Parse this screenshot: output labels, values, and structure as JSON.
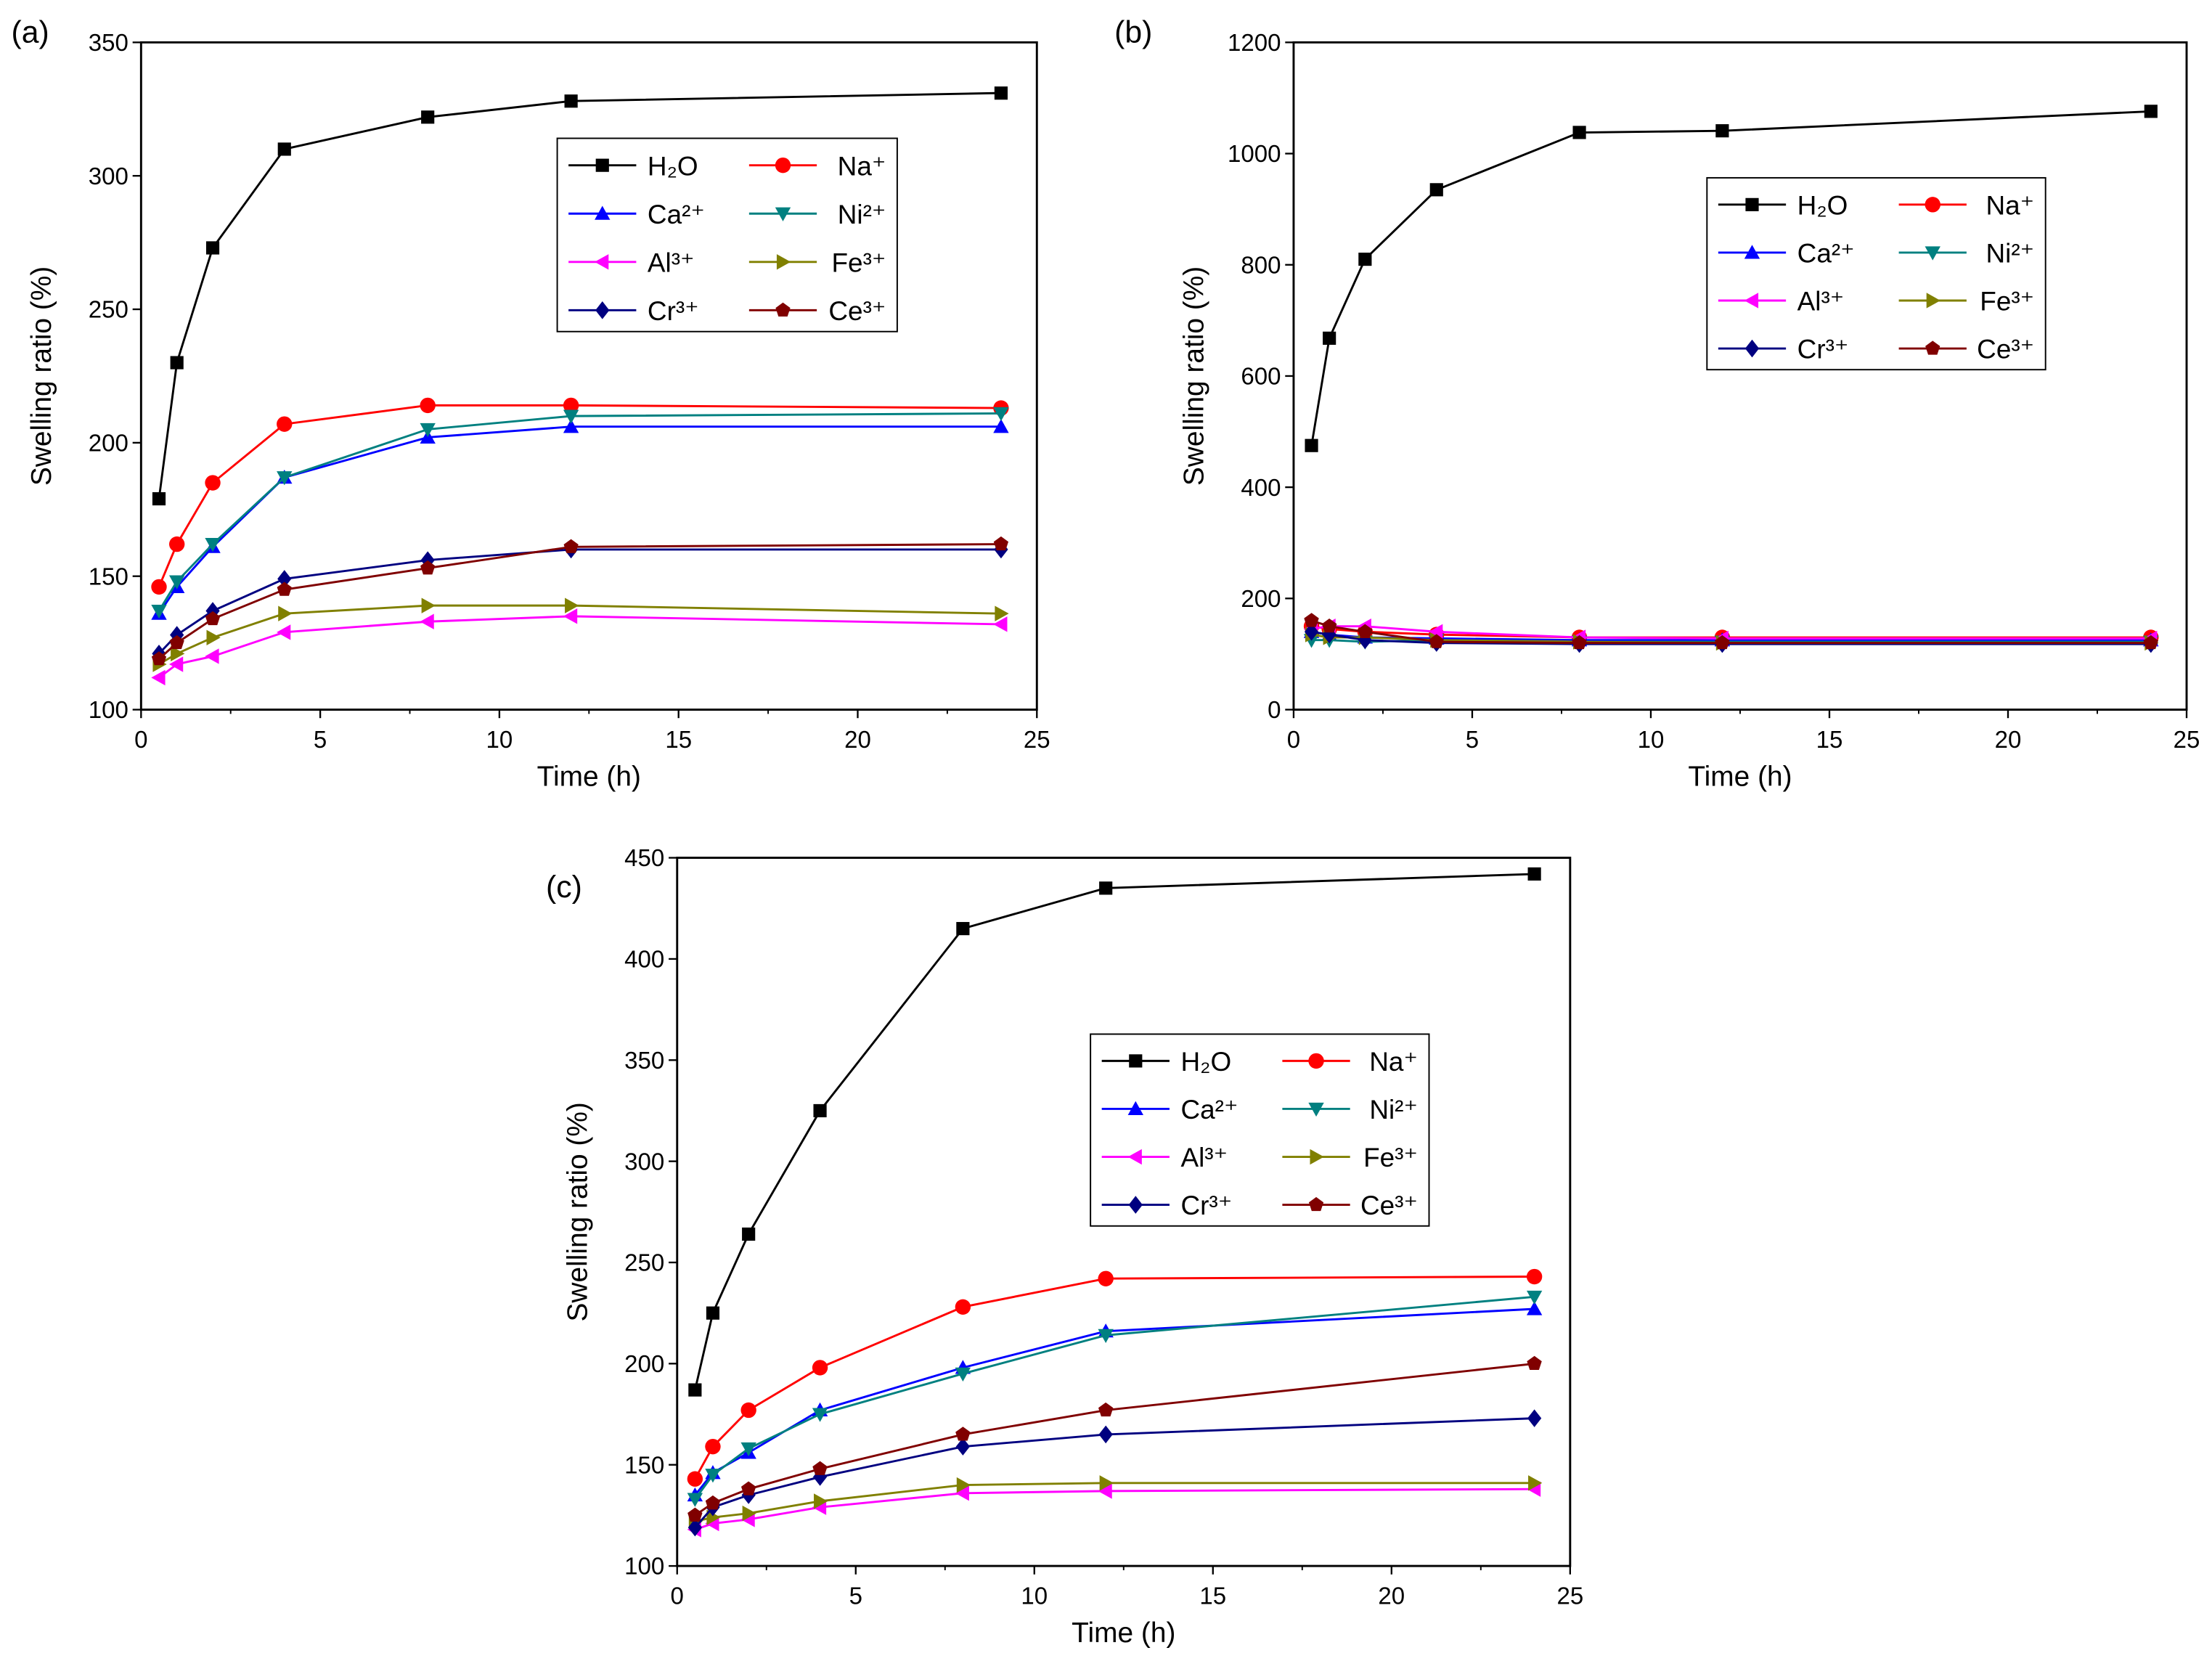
{
  "chart_data": [
    {
      "type": "line",
      "panel_label": "(a)",
      "xlabel": "Time (h)",
      "ylabel": "Swelling ratio (%)",
      "xlim": [
        0,
        25
      ],
      "ylim": [
        100,
        350
      ],
      "xticks": [
        0,
        5,
        10,
        15,
        20,
        25
      ],
      "yticks": [
        100,
        150,
        200,
        250,
        300,
        350
      ],
      "legend_placement": "upper-center",
      "x": [
        0.5,
        1,
        2,
        4,
        8,
        12,
        24
      ],
      "series": [
        {
          "name": "H₂O",
          "values": [
            179,
            230,
            273,
            310,
            322,
            328,
            331
          ]
        },
        {
          "name": "Na⁺",
          "values": [
            146,
            162,
            185,
            207,
            214,
            214,
            213
          ]
        },
        {
          "name": "Ca²⁺",
          "values": [
            136,
            146,
            161,
            187,
            202,
            206,
            206
          ]
        },
        {
          "name": "Ni²⁺",
          "values": [
            137,
            148,
            162,
            187,
            205,
            210,
            211
          ]
        },
        {
          "name": "Al³⁺",
          "values": [
            112,
            117,
            120,
            129,
            133,
            135,
            132
          ]
        },
        {
          "name": "Fe³⁺",
          "values": [
            117,
            121,
            127,
            136,
            139,
            139,
            136
          ]
        },
        {
          "name": "Cr³⁺",
          "values": [
            121,
            128,
            137,
            149,
            156,
            160,
            160
          ]
        },
        {
          "name": "Ce³⁺",
          "values": [
            119,
            125,
            134,
            145,
            153,
            161,
            162
          ]
        }
      ]
    },
    {
      "type": "line",
      "panel_label": "(b)",
      "xlabel": "Time (h)",
      "ylabel": "Swelling ratio (%)",
      "xlim": [
        0,
        25
      ],
      "ylim": [
        0,
        1200
      ],
      "xticks": [
        0,
        5,
        10,
        15,
        20,
        25
      ],
      "yticks": [
        0,
        200,
        400,
        600,
        800,
        1000,
        1200
      ],
      "legend_placement": "center-right",
      "x": [
        0.5,
        1,
        2,
        4,
        8,
        12,
        24
      ],
      "series": [
        {
          "name": "H₂O",
          "values": [
            475,
            668,
            810,
            935,
            1038,
            1041,
            1076
          ]
        },
        {
          "name": "Na⁺",
          "values": [
            150,
            145,
            140,
            135,
            130,
            130,
            130
          ]
        },
        {
          "name": "Ca²⁺",
          "values": [
            140,
            135,
            130,
            128,
            125,
            125,
            125
          ]
        },
        {
          "name": "Ni²⁺",
          "values": [
            125,
            125,
            122,
            125,
            122,
            122,
            122
          ]
        },
        {
          "name": "Al³⁺",
          "values": [
            145,
            150,
            150,
            140,
            130,
            128,
            128
          ]
        },
        {
          "name": "Fe³⁺",
          "values": [
            135,
            130,
            130,
            125,
            122,
            120,
            120
          ]
        },
        {
          "name": "Cr³⁺",
          "values": [
            140,
            135,
            125,
            120,
            118,
            118,
            118
          ]
        },
        {
          "name": "Ce³⁺",
          "values": [
            160,
            150,
            140,
            122,
            120,
            120,
            120
          ]
        }
      ]
    },
    {
      "type": "line",
      "panel_label": "(c)",
      "xlabel": "Time (h)",
      "ylabel": "Swelling ratio (%)",
      "xlim": [
        0,
        25
      ],
      "ylim": [
        100,
        450
      ],
      "xticks": [
        0,
        5,
        10,
        15,
        20,
        25
      ],
      "yticks": [
        100,
        150,
        200,
        250,
        300,
        350,
        400,
        450
      ],
      "legend_placement": "center",
      "x": [
        0.5,
        1,
        2,
        4,
        8,
        12,
        24
      ],
      "series": [
        {
          "name": "H₂O",
          "values": [
            187,
            225,
            264,
            325,
            415,
            435,
            442
          ]
        },
        {
          "name": "Na⁺",
          "values": [
            143,
            159,
            177,
            198,
            228,
            242,
            243
          ]
        },
        {
          "name": "Ca²⁺",
          "values": [
            135,
            146,
            156,
            177,
            198,
            216,
            227
          ]
        },
        {
          "name": "Ni²⁺",
          "values": [
            133,
            145,
            158,
            175,
            195,
            214,
            233
          ]
        },
        {
          "name": "Al³⁺",
          "values": [
            118,
            121,
            123,
            129,
            136,
            137,
            138
          ]
        },
        {
          "name": "Fe³⁺",
          "values": [
            122,
            124,
            126,
            132,
            140,
            141,
            141
          ]
        },
        {
          "name": "Cr³⁺",
          "values": [
            119,
            129,
            135,
            144,
            159,
            165,
            173
          ]
        },
        {
          "name": "Ce³⁺",
          "values": [
            125,
            131,
            138,
            148,
            165,
            177,
            200
          ]
        }
      ]
    }
  ],
  "series_style": [
    {
      "color": "#000000",
      "marker": "square"
    },
    {
      "color": "#ff0000",
      "marker": "circle"
    },
    {
      "color": "#0000ff",
      "marker": "triangle-up"
    },
    {
      "color": "#008080",
      "marker": "triangle-down"
    },
    {
      "color": "#ff00ff",
      "marker": "triangle-left"
    },
    {
      "color": "#808000",
      "marker": "triangle-right"
    },
    {
      "color": "#000080",
      "marker": "diamond"
    },
    {
      "color": "#800000",
      "marker": "pentagon"
    }
  ]
}
